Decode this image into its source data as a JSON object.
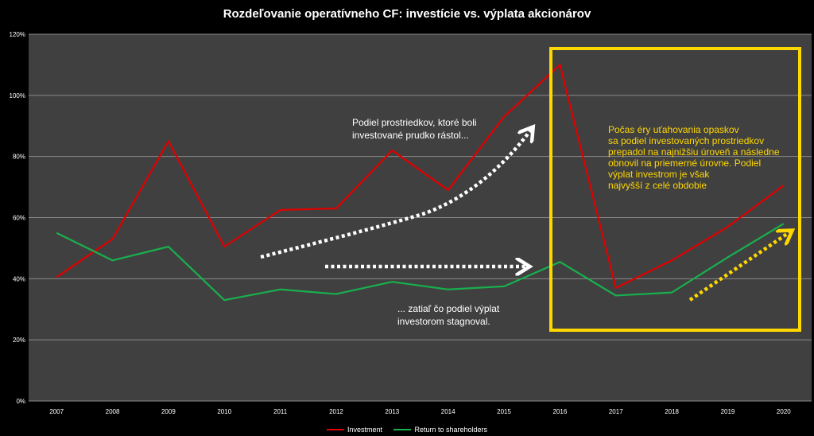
{
  "chart_data": {
    "type": "line",
    "title": "Rozdeľovanie operatívneho CF: investície vs. výplata akcionárov",
    "categories": [
      "2007",
      "2008",
      "2009",
      "2010",
      "2011",
      "2012",
      "2013",
      "2014",
      "2015",
      "2016",
      "2017",
      "2018",
      "2019",
      "2020"
    ],
    "series": [
      {
        "name": "Investment",
        "color": "#e00000",
        "values": [
          40.5,
          53,
          85,
          50.5,
          62.5,
          63,
          82,
          69,
          93,
          110,
          37,
          46,
          57,
          70.5
        ]
      },
      {
        "name": "Return to shareholders",
        "color": "#18b04e",
        "values": [
          55,
          46,
          50.5,
          33,
          36.5,
          35,
          39,
          36.5,
          37.5,
          45.5,
          34.5,
          35.5,
          47,
          58
        ]
      }
    ],
    "ylim": [
      0,
      120
    ],
    "yticks": [
      "0%",
      "20%",
      "40%",
      "60%",
      "80%",
      "100%",
      "120%"
    ],
    "grid": true,
    "legend": "bottom",
    "annotations": {
      "investment_note": [
        "Podiel prostriedkov, ktoré boli",
        "investované prudko rástol..."
      ],
      "shareholders_note": [
        "... zatiaľ čo podiel výplat",
        "investorom stagnoval."
      ],
      "highlight_note": [
        "Počas éry uťahovania opaskov",
        "sa podiel investovaných prostriedkov",
        "prepadol na najnižšiu úroveň a následne",
        "obnovil na priemerné úrovne. Podiel",
        "výplat investrom je však",
        "najvyšší z celé obdobie"
      ]
    },
    "colors": {
      "plot_bg": "#404040",
      "grid": "#8a8a8a",
      "highlight_box": "#ffd700",
      "highlight_text": "#ffd700",
      "arrow_white": "#ffffff"
    }
  }
}
